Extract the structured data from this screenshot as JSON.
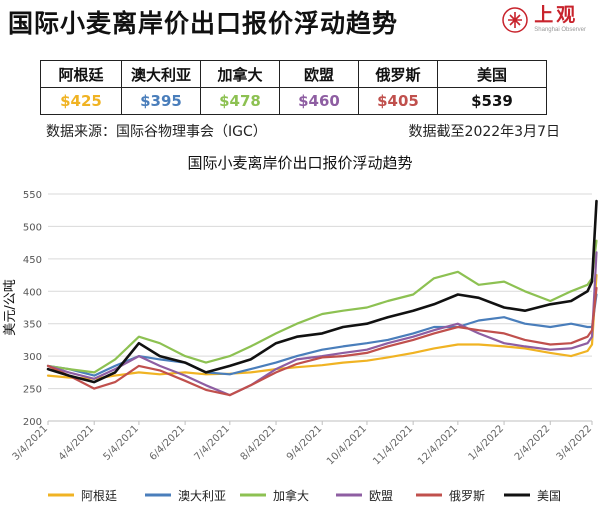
{
  "title": "国际小麦离岸价出口报价浮动趋势",
  "brand": {
    "name": "上观",
    "en": "Shanghai Observer"
  },
  "colors": {
    "brand": "#c8232c"
  },
  "price_table": [
    {
      "name": "阿根廷",
      "price": "$425",
      "color": "#f0b323"
    },
    {
      "name": "澳大利亚",
      "price": "$395",
      "color": "#4a7ebb"
    },
    {
      "name": "加拿大",
      "price": "$478",
      "color": "#8dc152"
    },
    {
      "name": "欧盟",
      "price": "$460",
      "color": "#8e5ea2"
    },
    {
      "name": "俄罗斯",
      "price": "$405",
      "color": "#c0504d"
    },
    {
      "name": "美国",
      "price": "$539",
      "color": "#111111"
    }
  ],
  "source": "数据来源：国际谷物理事会（IGC）",
  "data_date": "数据截至2022年3月7日",
  "chart_data": {
    "type": "line",
    "title": "国际小麦离岸价出口报价浮动趋势",
    "ylabel": "美元/公吨",
    "xlabel": "",
    "ylim": [
      200,
      550
    ],
    "yticks": [
      200,
      250,
      300,
      350,
      400,
      450,
      500,
      550
    ],
    "grid": true,
    "legend": "bottom",
    "x_ticks": [
      "3/4/2021",
      "4/4/2021",
      "5/4/2021",
      "6/4/2021",
      "7/4/2021",
      "8/4/2021",
      "9/4/2021",
      "10/4/2021",
      "11/4/2021",
      "12/4/2021",
      "1/4/2022",
      "2/4/2022",
      "3/4/2022"
    ],
    "x": [
      "3/4/2021",
      "3/18/2021",
      "4/4/2021",
      "4/18/2021",
      "5/4/2021",
      "5/18/2021",
      "6/4/2021",
      "6/18/2021",
      "7/4/2021",
      "7/18/2021",
      "8/4/2021",
      "8/18/2021",
      "9/4/2021",
      "9/18/2021",
      "10/4/2021",
      "10/18/2021",
      "11/4/2021",
      "11/18/2021",
      "12/4/2021",
      "12/18/2021",
      "1/4/2022",
      "1/18/2022",
      "2/4/2022",
      "2/18/2022",
      "3/1/2022",
      "3/4/2022",
      "3/7/2022"
    ],
    "series": [
      {
        "name": "阿根廷",
        "color": "#f0b323",
        "values": [
          270,
          267,
          265,
          270,
          275,
          272,
          275,
          272,
          273,
          275,
          280,
          283,
          286,
          290,
          293,
          298,
          305,
          312,
          318,
          318,
          315,
          312,
          305,
          300,
          308,
          318,
          425
        ]
      },
      {
        "name": "澳大利亚",
        "color": "#4a7ebb",
        "values": [
          285,
          280,
          270,
          285,
          300,
          295,
          290,
          275,
          272,
          280,
          290,
          300,
          310,
          315,
          320,
          325,
          335,
          345,
          345,
          355,
          360,
          350,
          345,
          350,
          345,
          345,
          395
        ]
      },
      {
        "name": "加拿大",
        "color": "#8dc152",
        "values": [
          285,
          280,
          275,
          295,
          330,
          320,
          300,
          290,
          300,
          315,
          335,
          350,
          365,
          370,
          375,
          385,
          395,
          420,
          430,
          410,
          415,
          400,
          385,
          400,
          410,
          420,
          478
        ]
      },
      {
        "name": "欧盟",
        "color": "#8e5ea2",
        "values": [
          285,
          275,
          265,
          280,
          300,
          285,
          270,
          255,
          240,
          255,
          280,
          295,
          300,
          305,
          310,
          320,
          330,
          340,
          350,
          335,
          320,
          315,
          310,
          312,
          320,
          330,
          460
        ]
      },
      {
        "name": "俄罗斯",
        "color": "#c0504d",
        "values": [
          285,
          270,
          250,
          260,
          285,
          278,
          262,
          248,
          240,
          255,
          275,
          288,
          298,
          300,
          305,
          315,
          325,
          335,
          345,
          340,
          335,
          325,
          318,
          320,
          330,
          340,
          405
        ]
      },
      {
        "name": "美国",
        "color": "#111111",
        "values": [
          280,
          270,
          260,
          275,
          320,
          300,
          290,
          275,
          285,
          295,
          320,
          330,
          335,
          345,
          350,
          360,
          370,
          380,
          395,
          390,
          375,
          370,
          380,
          385,
          400,
          415,
          539
        ]
      }
    ]
  }
}
